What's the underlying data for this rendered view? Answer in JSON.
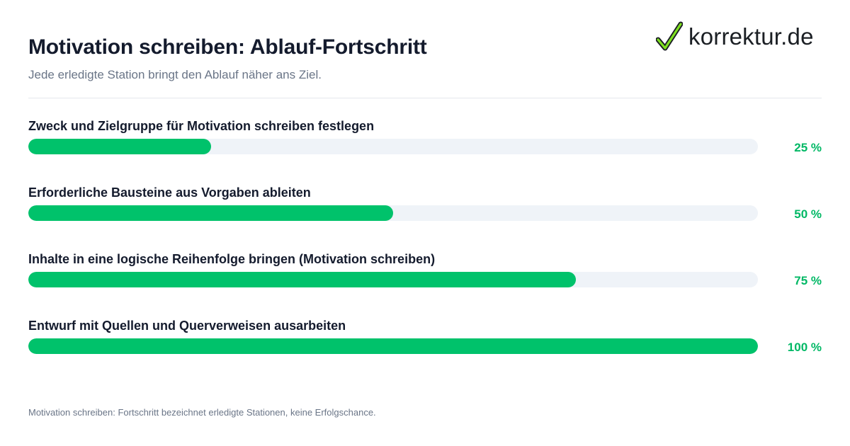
{
  "header": {
    "title": "Motivation schreiben: Ablauf-Fortschritt",
    "subtitle": "Jede erledigte Station bringt den Ablauf näher ans Ziel."
  },
  "logo": {
    "text": "korrektur.de",
    "icon": "checkmark-icon",
    "color": "#00c26b"
  },
  "chart_data": {
    "type": "bar",
    "orientation": "horizontal",
    "unit": "%",
    "ylim": [
      0,
      100
    ],
    "bar_color": "#00c26b",
    "track_color": "#eff3f8",
    "categories": [
      "Zweck und Zielgruppe für Motivation schreiben festlegen",
      "Erforderliche Bausteine aus Vorgaben ableiten",
      "Inhalte in eine logische Reihenfolge bringen (Motivation schreiben)",
      "Entwurf mit Quellen und Querverweisen ausarbeiten"
    ],
    "values": [
      25,
      50,
      75,
      100
    ],
    "value_labels": [
      "25 %",
      "50 %",
      "75 %",
      "100 %"
    ]
  },
  "footnote": "Motivation schreiben: Fortschritt bezeichnet erledigte Stationen, keine Erfolgschance."
}
